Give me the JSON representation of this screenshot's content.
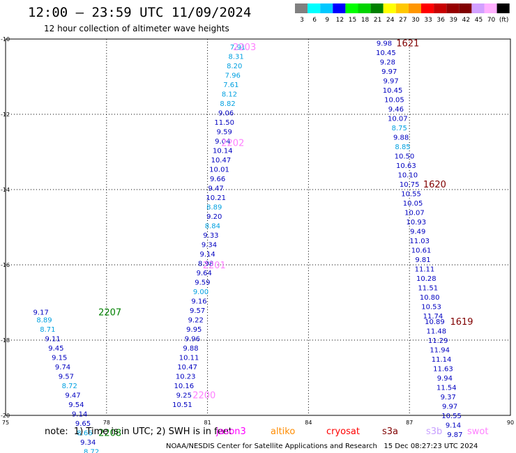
{
  "title": "12:00 – 23:59 UTC 11/09/2024",
  "subtitle": "12 hour collection of altimeter wave heights",
  "colorbar": {
    "colors": [
      "#808080",
      "#00ffff",
      "#00c8ff",
      "#0000ff",
      "#00ff00",
      "#00d400",
      "#008000",
      "#ffff00",
      "#ffc800",
      "#ff9600",
      "#ff0000",
      "#c80000",
      "#960000",
      "#800000",
      "#d2a0ff",
      "#ffb0ff",
      "#000000"
    ],
    "labels": [
      "3",
      "6",
      "9",
      "12",
      "15",
      "18",
      "21",
      "24",
      "27",
      "30",
      "33",
      "36",
      "39",
      "42",
      "45",
      "70",
      "(ft)"
    ]
  },
  "satellites": [
    {
      "name": "jason3",
      "color": "#ff00ff"
    },
    {
      "name": "altiko",
      "color": "#ff8c00"
    },
    {
      "name": "cryosat",
      "color": "#ff0000"
    },
    {
      "name": "s3a",
      "color": "#800000"
    },
    {
      "name": "s3b",
      "color": "#c8a0ff"
    },
    {
      "name": "swot",
      "color": "#ff80ff"
    }
  ],
  "footnote": "note:  1) Time is in UTC; 2) SWH is in feet",
  "credit": "NOAA/NESDIS Center for Satellite Applications and Research   15 Dec 08:27:23 UTC 2024",
  "chart_data": {
    "type": "scatter",
    "xlim": [
      75,
      90
    ],
    "ylim": [
      -20,
      -10
    ],
    "xticks": [
      "75",
      "78",
      "81",
      "84",
      "87",
      "90"
    ],
    "yticks": [
      "-10",
      "-12",
      "-14",
      "-16",
      "-18",
      "-20"
    ],
    "grid": true,
    "tracks": [
      {
        "label": "2207",
        "label_color": "#008000",
        "label_x": 78.1,
        "label_y": -17.25,
        "points": [
          {
            "x": 76.05,
            "y": -17.25,
            "v": "9.17",
            "c": "#0000c0"
          },
          {
            "x": 76.15,
            "y": -17.45,
            "v": "8.89",
            "c": "#00a0e0"
          },
          {
            "x": 76.25,
            "y": -17.7,
            "v": "8.71",
            "c": "#00a0e0"
          },
          {
            "x": 76.4,
            "y": -17.95,
            "v": "9.11",
            "c": "#0000c0"
          },
          {
            "x": 76.5,
            "y": -18.2,
            "v": "9.45",
            "c": "#0000c0"
          },
          {
            "x": 76.6,
            "y": -18.45,
            "v": "9.15",
            "c": "#0000c0"
          },
          {
            "x": 76.7,
            "y": -18.7,
            "v": "9.74",
            "c": "#0000c0"
          },
          {
            "x": 76.8,
            "y": -18.95,
            "v": "9.57",
            "c": "#0000c0"
          },
          {
            "x": 76.9,
            "y": -19.2,
            "v": "8.72",
            "c": "#00a0e0"
          },
          {
            "x": 77.0,
            "y": -19.45,
            "v": "9.47",
            "c": "#0000c0"
          },
          {
            "x": 77.1,
            "y": -19.7,
            "v": "9.54",
            "c": "#0000c0"
          },
          {
            "x": 77.2,
            "y": -19.95,
            "v": "9.14",
            "c": "#0000c0"
          },
          {
            "x": 77.3,
            "y": -20.2,
            "v": "9.65",
            "c": "#0000c0"
          },
          {
            "x": 77.35,
            "y": -20.45,
            "v": "8.66",
            "c": "#00a0e0"
          },
          {
            "x": 77.45,
            "y": -20.7,
            "v": "9.34",
            "c": "#0000c0"
          },
          {
            "x": 77.55,
            "y": -20.95,
            "v": "8.72",
            "c": "#00a0e0"
          }
        ]
      },
      {
        "label": "2208",
        "label_color": "#008000",
        "label_x": 78.1,
        "label_y": -20.45,
        "points": []
      },
      {
        "label": "2203",
        "label_color": "#ff80ff",
        "label_x": 82.1,
        "label_y": -10.2,
        "points": [
          {
            "x": 81.9,
            "y": -10.2,
            "v": "7.91",
            "c": "#00a0e0"
          },
          {
            "x": 81.85,
            "y": -10.45,
            "v": "8.31",
            "c": "#00a0e0"
          },
          {
            "x": 81.8,
            "y": -10.7,
            "v": "8.20",
            "c": "#00a0e0"
          },
          {
            "x": 81.75,
            "y": -10.95,
            "v": "7.96",
            "c": "#00a0e0"
          },
          {
            "x": 81.7,
            "y": -11.2,
            "v": "7.61",
            "c": "#00a0e0"
          },
          {
            "x": 81.65,
            "y": -11.45,
            "v": "8.12",
            "c": "#00a0e0"
          },
          {
            "x": 81.6,
            "y": -11.7,
            "v": "8.82",
            "c": "#00a0e0"
          },
          {
            "x": 81.55,
            "y": -11.95,
            "v": "9.06",
            "c": "#0000c0"
          },
          {
            "x": 81.5,
            "y": -12.2,
            "v": "11.50",
            "c": "#0000c0"
          },
          {
            "x": 81.5,
            "y": -12.45,
            "v": "9.59",
            "c": "#0000c0"
          },
          {
            "x": 81.45,
            "y": -12.7,
            "v": "9.04",
            "c": "#0000c0"
          },
          {
            "x": 81.45,
            "y": -12.95,
            "v": "10.14",
            "c": "#0000c0"
          },
          {
            "x": 81.4,
            "y": -13.2,
            "v": "10.47",
            "c": "#0000c0"
          },
          {
            "x": 81.35,
            "y": -13.45,
            "v": "10.01",
            "c": "#0000c0"
          },
          {
            "x": 81.3,
            "y": -13.7,
            "v": "9.66",
            "c": "#0000c0"
          },
          {
            "x": 81.25,
            "y": -13.95,
            "v": "9.47",
            "c": "#0000c0"
          },
          {
            "x": 81.25,
            "y": -14.2,
            "v": "10.21",
            "c": "#0000c0"
          },
          {
            "x": 81.2,
            "y": -14.45,
            "v": "8.89",
            "c": "#00a0e0"
          },
          {
            "x": 81.2,
            "y": -14.7,
            "v": "9.20",
            "c": "#0000c0"
          },
          {
            "x": 81.15,
            "y": -14.95,
            "v": "8.84",
            "c": "#00a0e0"
          },
          {
            "x": 81.1,
            "y": -15.2,
            "v": "9.33",
            "c": "#0000c0"
          },
          {
            "x": 81.05,
            "y": -15.45,
            "v": "9.34",
            "c": "#0000c0"
          },
          {
            "x": 81.0,
            "y": -15.7,
            "v": "9.14",
            "c": "#0000c0"
          },
          {
            "x": 80.95,
            "y": -15.95,
            "v": "8.98",
            "c": "#0000c0"
          }
        ]
      },
      {
        "label": "2202",
        "label_color": "#ff80ff",
        "label_x": 81.75,
        "label_y": -12.75,
        "points": []
      },
      {
        "label": "2201",
        "label_color": "#ff80ff",
        "label_x": 81.2,
        "label_y": -16.0,
        "points": [
          {
            "x": 80.9,
            "y": -16.2,
            "v": "9.64",
            "c": "#0000c0"
          },
          {
            "x": 80.85,
            "y": -16.45,
            "v": "9.59",
            "c": "#0000c0"
          },
          {
            "x": 80.8,
            "y": -16.7,
            "v": "9.00",
            "c": "#00a0e0"
          },
          {
            "x": 80.75,
            "y": -16.95,
            "v": "9.16",
            "c": "#0000c0"
          },
          {
            "x": 80.7,
            "y": -17.2,
            "v": "9.57",
            "c": "#0000c0"
          },
          {
            "x": 80.65,
            "y": -17.45,
            "v": "9.22",
            "c": "#0000c0"
          },
          {
            "x": 80.6,
            "y": -17.7,
            "v": "9.95",
            "c": "#0000c0"
          },
          {
            "x": 80.55,
            "y": -17.95,
            "v": "9.96",
            "c": "#0000c0"
          },
          {
            "x": 80.5,
            "y": -18.2,
            "v": "9.88",
            "c": "#0000c0"
          },
          {
            "x": 80.45,
            "y": -18.45,
            "v": "10.11",
            "c": "#0000c0"
          },
          {
            "x": 80.4,
            "y": -18.7,
            "v": "10.47",
            "c": "#0000c0"
          },
          {
            "x": 80.35,
            "y": -18.95,
            "v": "10.23",
            "c": "#0000c0"
          },
          {
            "x": 80.3,
            "y": -19.2,
            "v": "10.16",
            "c": "#0000c0"
          },
          {
            "x": 80.3,
            "y": -19.45,
            "v": "9.25",
            "c": "#0000c0"
          },
          {
            "x": 80.25,
            "y": -19.7,
            "v": "10.51",
            "c": "#0000c0"
          }
        ]
      },
      {
        "label": "2200",
        "label_color": "#ff80ff",
        "label_x": 80.9,
        "label_y": -19.45,
        "points": []
      },
      {
        "label": "1621",
        "label_color": "#800000",
        "label_x": 86.95,
        "label_y": -10.1,
        "points": [
          {
            "x": 86.25,
            "y": -10.1,
            "v": "9.98",
            "c": "#0000c0"
          },
          {
            "x": 86.3,
            "y": -10.35,
            "v": "10.45",
            "c": "#0000c0"
          },
          {
            "x": 86.35,
            "y": -10.6,
            "v": "9.28",
            "c": "#0000c0"
          },
          {
            "x": 86.4,
            "y": -10.85,
            "v": "9.97",
            "c": "#0000c0"
          },
          {
            "x": 86.45,
            "y": -11.1,
            "v": "9.97",
            "c": "#0000c0"
          },
          {
            "x": 86.5,
            "y": -11.35,
            "v": "10.45",
            "c": "#0000c0"
          },
          {
            "x": 86.55,
            "y": -11.6,
            "v": "10.05",
            "c": "#0000c0"
          },
          {
            "x": 86.6,
            "y": -11.85,
            "v": "9.46",
            "c": "#0000c0"
          },
          {
            "x": 86.65,
            "y": -12.1,
            "v": "10.07",
            "c": "#0000c0"
          },
          {
            "x": 86.7,
            "y": -12.35,
            "v": "8.75",
            "c": "#00a0e0"
          },
          {
            "x": 86.75,
            "y": -12.6,
            "v": "9.88",
            "c": "#0000c0"
          },
          {
            "x": 86.8,
            "y": -12.85,
            "v": "8.85",
            "c": "#00a0e0"
          },
          {
            "x": 86.85,
            "y": -13.1,
            "v": "10.50",
            "c": "#0000c0"
          },
          {
            "x": 86.9,
            "y": -13.35,
            "v": "10.63",
            "c": "#0000c0"
          },
          {
            "x": 86.95,
            "y": -13.6,
            "v": "10.10",
            "c": "#0000c0"
          },
          {
            "x": 87.0,
            "y": -13.85,
            "v": "10.75",
            "c": "#0000c0"
          },
          {
            "x": 87.05,
            "y": -14.1,
            "v": "10.55",
            "c": "#0000c0"
          },
          {
            "x": 87.1,
            "y": -14.35,
            "v": "10.05",
            "c": "#0000c0"
          },
          {
            "x": 87.15,
            "y": -14.6,
            "v": "10.07",
            "c": "#0000c0"
          },
          {
            "x": 87.2,
            "y": -14.85,
            "v": "10.93",
            "c": "#0000c0"
          },
          {
            "x": 87.25,
            "y": -15.1,
            "v": "9.49",
            "c": "#0000c0"
          },
          {
            "x": 87.3,
            "y": -15.35,
            "v": "11.03",
            "c": "#0000c0"
          },
          {
            "x": 87.35,
            "y": -15.6,
            "v": "10.61",
            "c": "#0000c0"
          },
          {
            "x": 87.4,
            "y": -15.85,
            "v": "9.81",
            "c": "#0000c0"
          },
          {
            "x": 87.45,
            "y": -16.1,
            "v": "11.11",
            "c": "#0000c0"
          },
          {
            "x": 87.5,
            "y": -16.35,
            "v": "10.28",
            "c": "#0000c0"
          },
          {
            "x": 87.55,
            "y": -16.6,
            "v": "11.51",
            "c": "#0000c0"
          },
          {
            "x": 87.6,
            "y": -16.85,
            "v": "10.80",
            "c": "#0000c0"
          },
          {
            "x": 87.65,
            "y": -17.1,
            "v": "10.53",
            "c": "#0000c0"
          },
          {
            "x": 87.7,
            "y": -17.35,
            "v": "11.74",
            "c": "#0000c0"
          },
          {
            "x": 87.75,
            "y": -17.5,
            "v": "10.89",
            "c": "#0000c0"
          },
          {
            "x": 87.8,
            "y": -17.75,
            "v": "11.48",
            "c": "#0000c0"
          },
          {
            "x": 87.85,
            "y": -18.0,
            "v": "11.29",
            "c": "#0000c0"
          },
          {
            "x": 87.9,
            "y": -18.25,
            "v": "11.94",
            "c": "#0000c0"
          },
          {
            "x": 87.95,
            "y": -18.5,
            "v": "11.14",
            "c": "#0000c0"
          },
          {
            "x": 88.0,
            "y": -18.75,
            "v": "11.63",
            "c": "#0000c0"
          },
          {
            "x": 88.05,
            "y": -19.0,
            "v": "9.94",
            "c": "#0000c0"
          },
          {
            "x": 88.1,
            "y": -19.25,
            "v": "11.54",
            "c": "#0000c0"
          },
          {
            "x": 88.15,
            "y": -19.5,
            "v": "9.37",
            "c": "#0000c0"
          },
          {
            "x": 88.2,
            "y": -19.75,
            "v": "9.97",
            "c": "#0000c0"
          },
          {
            "x": 88.25,
            "y": -20.0,
            "v": "10.55",
            "c": "#0000c0"
          },
          {
            "x": 88.3,
            "y": -20.25,
            "v": "9.14",
            "c": "#0000c0"
          },
          {
            "x": 88.35,
            "y": -20.5,
            "v": "9.87",
            "c": "#0000c0"
          }
        ]
      },
      {
        "label": "1620",
        "label_color": "#800000",
        "label_x": 87.75,
        "label_y": -13.85,
        "points": []
      },
      {
        "label": "1619",
        "label_color": "#800000",
        "label_x": 88.55,
        "label_y": -17.5,
        "points": []
      }
    ]
  }
}
